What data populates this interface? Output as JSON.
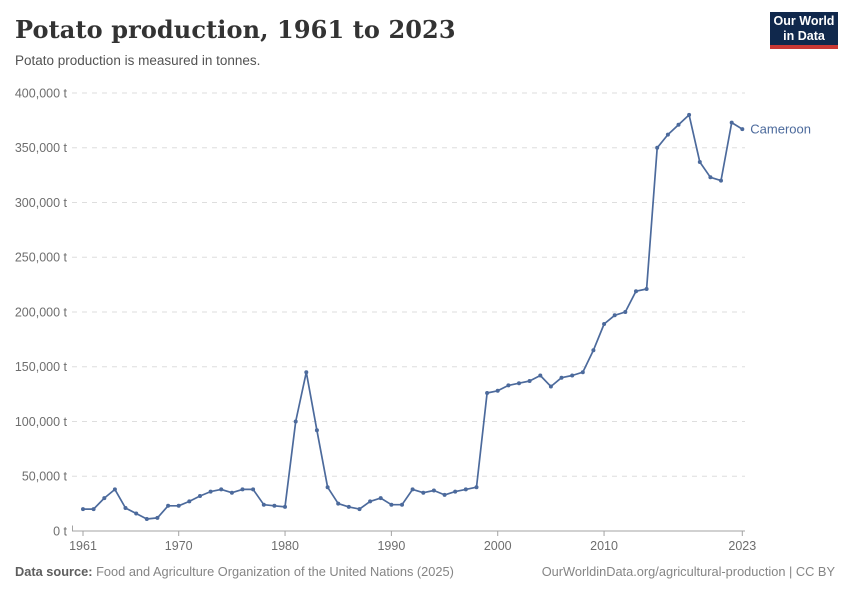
{
  "header": {
    "title": "Potato production, 1961 to 2023",
    "subtitle": "Potato production is measured in tonnes."
  },
  "logo": {
    "line1": "Our World",
    "line2": "in Data",
    "bg_color": "#10284c",
    "accent_color": "#c93834"
  },
  "entity": {
    "label": "Cameroon",
    "color": "#4c6a9c"
  },
  "chart_data": {
    "type": "line",
    "title": "Potato production, 1961 to 2023",
    "ylabel": "",
    "xlabel": "",
    "unit": "t",
    "grid": "horizontal-dashed",
    "legend": "end-of-line-label",
    "ylim": [
      0,
      400000
    ],
    "yticks": [
      0,
      50000,
      100000,
      150000,
      200000,
      250000,
      300000,
      350000,
      400000
    ],
    "ytick_labels": [
      "0 t",
      "50,000 t",
      "100,000 t",
      "150,000 t",
      "200,000 t",
      "250,000 t",
      "300,000 t",
      "350,000 t",
      "400,000 t"
    ],
    "xticks": [
      1961,
      1970,
      1980,
      1990,
      2000,
      2010,
      2023
    ],
    "xtick_labels": [
      "1961",
      "1970",
      "1980",
      "1990",
      "2000",
      "2010",
      "2023"
    ],
    "x": [
      1961,
      1962,
      1963,
      1964,
      1965,
      1966,
      1967,
      1968,
      1969,
      1970,
      1971,
      1972,
      1973,
      1974,
      1975,
      1976,
      1977,
      1978,
      1979,
      1980,
      1981,
      1982,
      1983,
      1984,
      1985,
      1986,
      1987,
      1988,
      1989,
      1990,
      1991,
      1992,
      1993,
      1994,
      1995,
      1996,
      1997,
      1998,
      1999,
      2000,
      2001,
      2002,
      2003,
      2004,
      2005,
      2006,
      2007,
      2008,
      2009,
      2010,
      2011,
      2012,
      2013,
      2014,
      2015,
      2016,
      2017,
      2018,
      2019,
      2020,
      2021,
      2022,
      2023
    ],
    "series": [
      {
        "name": "Cameroon",
        "color": "#4c6a9c",
        "values": [
          20000,
          20000,
          30000,
          38000,
          21000,
          16000,
          11000,
          12000,
          23000,
          23000,
          27000,
          32000,
          36000,
          38000,
          35000,
          38000,
          38000,
          24000,
          23000,
          22000,
          100000,
          145000,
          92000,
          40000,
          25000,
          22000,
          20000,
          27000,
          30000,
          24000,
          24000,
          38000,
          35000,
          37000,
          33000,
          36000,
          38000,
          40000,
          126000,
          128000,
          133000,
          135000,
          137000,
          142000,
          132000,
          140000,
          142000,
          145000,
          165000,
          189000,
          197000,
          200000,
          219000,
          221000,
          350000,
          362000,
          371000,
          380000,
          337000,
          323000,
          320000,
          373000,
          367000
        ]
      }
    ]
  },
  "footer": {
    "source_label": "Data source:",
    "source": "Food and Agriculture Organization of the United Nations (2025)",
    "link": "OurWorldinData.org/agricultural-production | CC BY"
  }
}
